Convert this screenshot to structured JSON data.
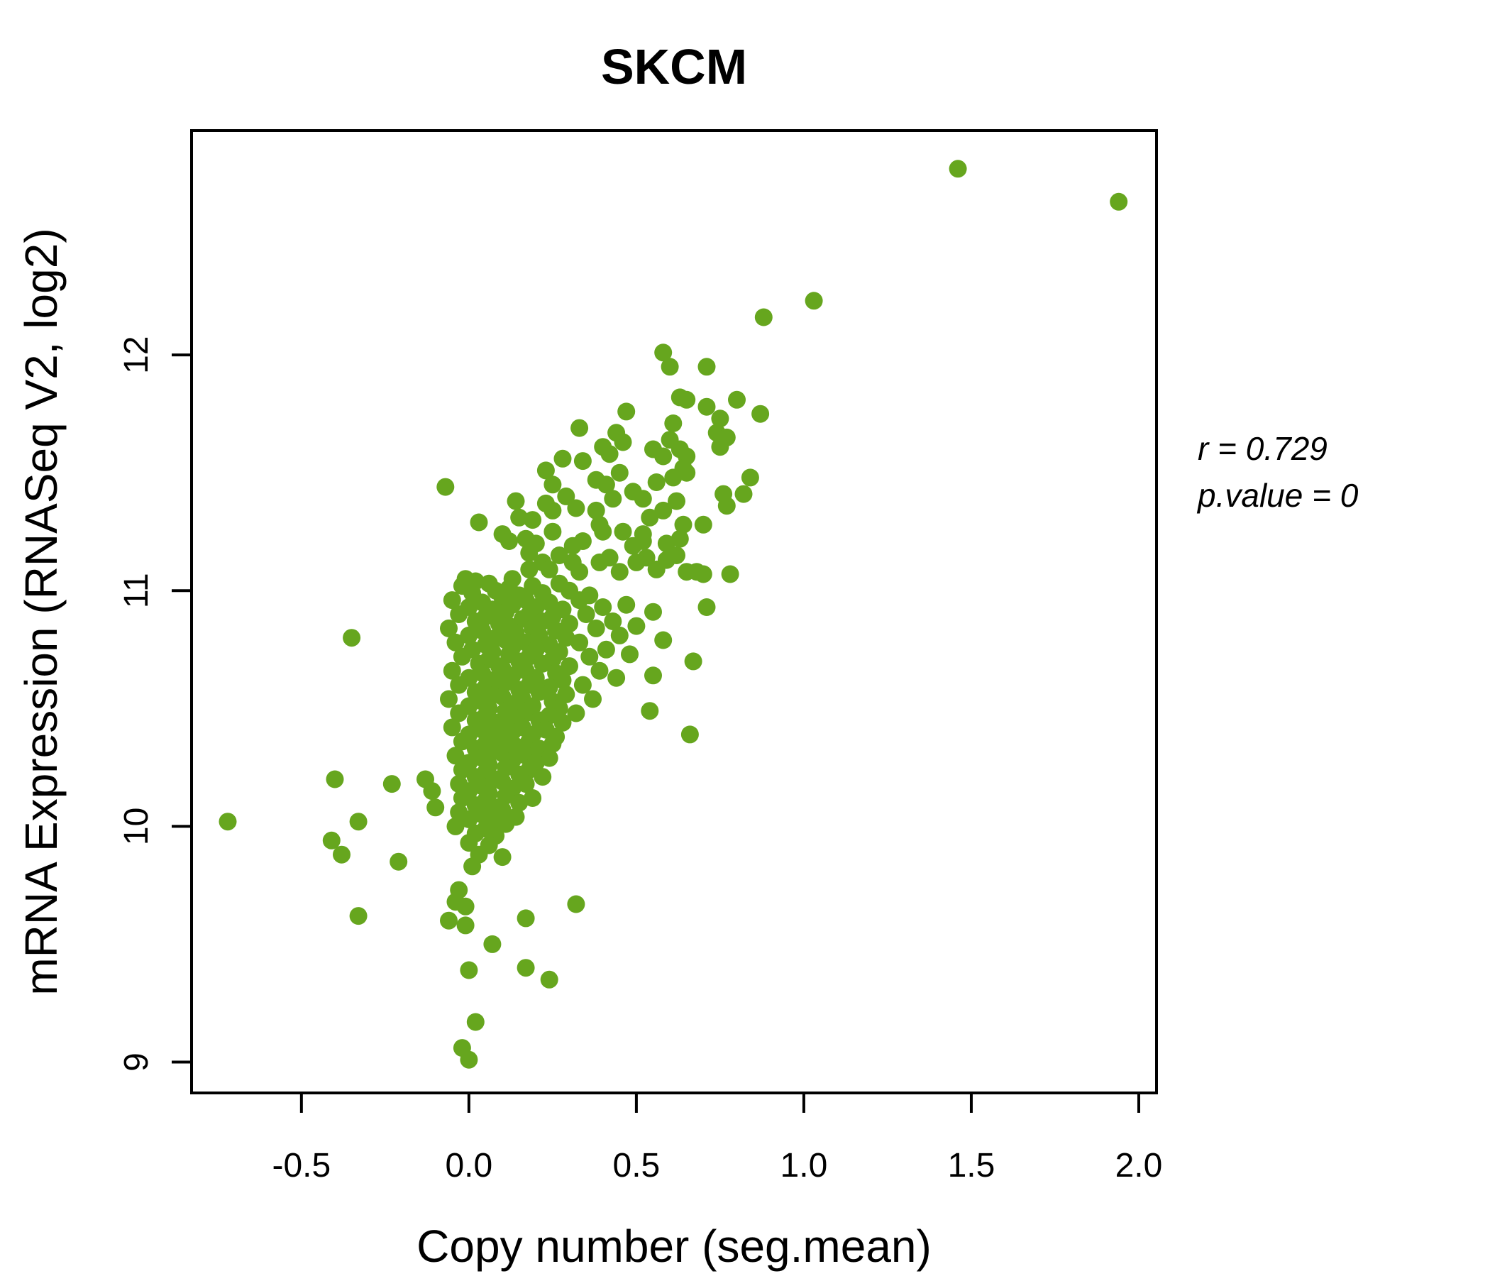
{
  "page": {
    "background": "#ffffff"
  },
  "chart_data": {
    "type": "scatter",
    "title": "SKCM",
    "title_color": "#66a61e",
    "xlabel": "Copy number (seg.mean)",
    "ylabel": "mRNA Expression (RNASeq V2, log2)",
    "xlim": [
      -0.828,
      2.053
    ],
    "ylim": [
      8.869,
      12.952
    ],
    "xticks": [
      -0.5,
      0.0,
      0.5,
      1.0,
      1.5,
      2.0
    ],
    "xtick_labels": [
      "-0.5",
      "0.0",
      "0.5",
      "1.0",
      "1.5",
      "2.0"
    ],
    "yticks": [
      9,
      10,
      11,
      12
    ],
    "ytick_labels": [
      "9",
      "10",
      "11",
      "12"
    ],
    "grid": false,
    "legend_position": "none",
    "point_color": "#66a61e",
    "point_radius_px": 12.5,
    "annotation": {
      "line1": "r = 0.729",
      "line2": "p.value = 0"
    },
    "points": [
      [
        1.46,
        12.79
      ],
      [
        1.94,
        12.65
      ],
      [
        1.03,
        12.23
      ],
      [
        0.88,
        12.16
      ],
      [
        0.58,
        12.01
      ],
      [
        0.6,
        11.95
      ],
      [
        0.71,
        11.95
      ],
      [
        0.63,
        11.82
      ],
      [
        0.65,
        11.81
      ],
      [
        0.8,
        11.81
      ],
      [
        0.71,
        11.78
      ],
      [
        0.47,
        11.76
      ],
      [
        0.87,
        11.75
      ],
      [
        0.75,
        11.73
      ],
      [
        0.33,
        11.69
      ],
      [
        0.61,
        11.71
      ],
      [
        0.44,
        11.67
      ],
      [
        0.74,
        11.67
      ],
      [
        0.77,
        11.65
      ],
      [
        0.6,
        11.64
      ],
      [
        0.46,
        11.63
      ],
      [
        0.75,
        11.61
      ],
      [
        0.4,
        11.61
      ],
      [
        0.63,
        11.6
      ],
      [
        0.42,
        11.58
      ],
      [
        0.65,
        11.57
      ],
      [
        0.28,
        11.56
      ],
      [
        0.34,
        11.55
      ],
      [
        0.55,
        11.6
      ],
      [
        0.58,
        11.57
      ],
      [
        0.23,
        11.51
      ],
      [
        0.45,
        11.5
      ],
      [
        0.65,
        11.5
      ],
      [
        0.84,
        11.48
      ],
      [
        0.38,
        11.47
      ],
      [
        0.56,
        11.46
      ],
      [
        0.61,
        11.48
      ],
      [
        0.25,
        11.45
      ],
      [
        0.41,
        11.45
      ],
      [
        -0.07,
        11.44
      ],
      [
        0.49,
        11.42
      ],
      [
        0.64,
        11.52
      ],
      [
        0.29,
        11.4
      ],
      [
        0.43,
        11.39
      ],
      [
        0.52,
        11.39
      ],
      [
        0.14,
        11.38
      ],
      [
        0.23,
        11.37
      ],
      [
        0.77,
        11.36
      ],
      [
        0.32,
        11.35
      ],
      [
        0.38,
        11.34
      ],
      [
        0.58,
        11.34
      ],
      [
        0.25,
        11.34
      ],
      [
        0.62,
        11.38
      ],
      [
        0.76,
        11.41
      ],
      [
        0.82,
        11.41
      ],
      [
        0.03,
        11.29
      ],
      [
        0.15,
        11.31
      ],
      [
        0.19,
        11.3
      ],
      [
        0.54,
        11.31
      ],
      [
        0.39,
        11.28
      ],
      [
        0.64,
        11.28
      ],
      [
        0.7,
        11.28
      ],
      [
        0.4,
        11.25
      ],
      [
        0.25,
        11.25
      ],
      [
        0.46,
        11.25
      ],
      [
        0.52,
        11.24
      ],
      [
        0.1,
        11.24
      ],
      [
        0.17,
        11.22
      ],
      [
        0.63,
        11.22
      ],
      [
        0.12,
        11.21
      ],
      [
        0.2,
        11.2
      ],
      [
        0.34,
        11.21
      ],
      [
        0.52,
        11.21
      ],
      [
        0.49,
        11.19
      ],
      [
        0.31,
        11.19
      ],
      [
        0.59,
        11.2
      ],
      [
        0.18,
        11.16
      ],
      [
        0.27,
        11.15
      ],
      [
        0.62,
        11.15
      ],
      [
        0.42,
        11.14
      ],
      [
        0.53,
        11.14
      ],
      [
        0.59,
        11.13
      ],
      [
        0.22,
        11.12
      ],
      [
        0.31,
        11.12
      ],
      [
        0.39,
        11.12
      ],
      [
        0.5,
        11.12
      ],
      [
        0.18,
        11.09
      ],
      [
        0.24,
        11.09
      ],
      [
        0.56,
        11.09
      ],
      [
        0.33,
        11.08
      ],
      [
        0.45,
        11.08
      ],
      [
        0.65,
        11.08
      ],
      [
        0.68,
        11.08
      ],
      [
        0.7,
        11.07
      ],
      [
        0.78,
        11.07
      ],
      [
        -0.01,
        11.05
      ],
      [
        0.02,
        11.04
      ],
      [
        0.13,
        11.05
      ],
      [
        0.71,
        10.93
      ],
      [
        0.67,
        10.7
      ],
      [
        0.55,
        10.64
      ],
      [
        0.54,
        10.49
      ],
      [
        0.66,
        10.39
      ],
      [
        -0.72,
        10.02
      ],
      [
        -0.41,
        9.94
      ],
      [
        -0.35,
        10.8
      ],
      [
        -0.4,
        10.2
      ],
      [
        -0.23,
        10.18
      ],
      [
        -0.13,
        10.2
      ],
      [
        -0.11,
        10.15
      ],
      [
        -0.1,
        10.08
      ],
      [
        -0.33,
        10.02
      ],
      [
        -0.38,
        9.88
      ],
      [
        -0.21,
        9.85
      ],
      [
        -0.33,
        9.62
      ],
      [
        -0.03,
        9.73
      ],
      [
        -0.04,
        9.68
      ],
      [
        -0.01,
        9.66
      ],
      [
        -0.06,
        9.6
      ],
      [
        -0.01,
        9.58
      ],
      [
        0.32,
        9.67
      ],
      [
        0.17,
        9.61
      ],
      [
        0.07,
        9.5
      ],
      [
        0.0,
        9.39
      ],
      [
        0.17,
        9.4
      ],
      [
        0.24,
        9.35
      ],
      [
        0.02,
        9.17
      ],
      [
        -0.02,
        9.06
      ],
      [
        0.0,
        9.01
      ],
      [
        -0.02,
        11.02
      ],
      [
        0.06,
        11.03
      ],
      [
        0.12,
        11.01
      ],
      [
        0.19,
        11.02
      ],
      [
        0.27,
        11.03
      ],
      [
        0.01,
        10.99
      ],
      [
        0.08,
        11.0
      ],
      [
        0.15,
        10.98
      ],
      [
        0.22,
        10.99
      ],
      [
        0.3,
        11.0
      ],
      [
        0.36,
        10.98
      ],
      [
        -0.05,
        10.96
      ],
      [
        0.04,
        10.95
      ],
      [
        0.1,
        10.97
      ],
      [
        0.17,
        10.96
      ],
      [
        0.24,
        10.95
      ],
      [
        0.33,
        10.96
      ],
      [
        0.0,
        10.93
      ],
      [
        0.07,
        10.92
      ],
      [
        0.13,
        10.94
      ],
      [
        0.2,
        10.93
      ],
      [
        0.28,
        10.92
      ],
      [
        0.4,
        10.93
      ],
      [
        0.47,
        10.94
      ],
      [
        -0.03,
        10.9
      ],
      [
        0.05,
        10.89
      ],
      [
        0.11,
        10.91
      ],
      [
        0.18,
        10.9
      ],
      [
        0.25,
        10.89
      ],
      [
        0.35,
        10.9
      ],
      [
        0.55,
        10.91
      ],
      [
        0.02,
        10.87
      ],
      [
        0.09,
        10.86
      ],
      [
        0.16,
        10.88
      ],
      [
        0.22,
        10.87
      ],
      [
        0.3,
        10.86
      ],
      [
        0.43,
        10.87
      ],
      [
        -0.06,
        10.84
      ],
      [
        0.04,
        10.83
      ],
      [
        0.12,
        10.85
      ],
      [
        0.19,
        10.84
      ],
      [
        0.26,
        10.83
      ],
      [
        0.38,
        10.84
      ],
      [
        0.5,
        10.85
      ],
      [
        0.0,
        10.81
      ],
      [
        0.08,
        10.8
      ],
      [
        0.14,
        10.82
      ],
      [
        0.21,
        10.81
      ],
      [
        0.29,
        10.8
      ],
      [
        0.45,
        10.81
      ],
      [
        -0.04,
        10.78
      ],
      [
        0.05,
        10.77
      ],
      [
        0.11,
        10.79
      ],
      [
        0.17,
        10.78
      ],
      [
        0.24,
        10.77
      ],
      [
        0.33,
        10.78
      ],
      [
        0.58,
        10.79
      ],
      [
        0.01,
        10.75
      ],
      [
        0.07,
        10.74
      ],
      [
        0.13,
        10.76
      ],
      [
        0.2,
        10.75
      ],
      [
        0.27,
        10.74
      ],
      [
        0.41,
        10.75
      ],
      [
        -0.02,
        10.72
      ],
      [
        0.06,
        10.71
      ],
      [
        0.12,
        10.73
      ],
      [
        0.18,
        10.72
      ],
      [
        0.25,
        10.71
      ],
      [
        0.36,
        10.72
      ],
      [
        0.48,
        10.73
      ],
      [
        0.03,
        10.69
      ],
      [
        0.09,
        10.68
      ],
      [
        0.15,
        10.7
      ],
      [
        0.22,
        10.69
      ],
      [
        0.3,
        10.68
      ],
      [
        -0.05,
        10.66
      ],
      [
        0.04,
        10.65
      ],
      [
        0.1,
        10.67
      ],
      [
        0.17,
        10.66
      ],
      [
        0.26,
        10.65
      ],
      [
        0.39,
        10.66
      ],
      [
        0.0,
        10.63
      ],
      [
        0.07,
        10.62
      ],
      [
        0.13,
        10.64
      ],
      [
        0.2,
        10.63
      ],
      [
        0.28,
        10.62
      ],
      [
        0.44,
        10.63
      ],
      [
        -0.03,
        10.6
      ],
      [
        0.05,
        10.59
      ],
      [
        0.11,
        10.61
      ],
      [
        0.18,
        10.6
      ],
      [
        0.24,
        10.59
      ],
      [
        0.34,
        10.6
      ],
      [
        0.02,
        10.57
      ],
      [
        0.08,
        10.56
      ],
      [
        0.15,
        10.58
      ],
      [
        0.21,
        10.57
      ],
      [
        0.29,
        10.56
      ],
      [
        -0.06,
        10.54
      ],
      [
        0.04,
        10.53
      ],
      [
        0.1,
        10.55
      ],
      [
        0.16,
        10.54
      ],
      [
        0.25,
        10.53
      ],
      [
        0.37,
        10.54
      ],
      [
        0.0,
        10.51
      ],
      [
        0.06,
        10.5
      ],
      [
        0.13,
        10.52
      ],
      [
        0.19,
        10.51
      ],
      [
        0.27,
        10.5
      ],
      [
        -0.03,
        10.48
      ],
      [
        0.05,
        10.47
      ],
      [
        0.11,
        10.49
      ],
      [
        0.17,
        10.48
      ],
      [
        0.24,
        10.47
      ],
      [
        0.32,
        10.48
      ],
      [
        0.02,
        10.45
      ],
      [
        0.08,
        10.44
      ],
      [
        0.14,
        10.46
      ],
      [
        0.21,
        10.45
      ],
      [
        0.28,
        10.44
      ],
      [
        -0.05,
        10.42
      ],
      [
        0.04,
        10.41
      ],
      [
        0.1,
        10.43
      ],
      [
        0.16,
        10.42
      ],
      [
        0.23,
        10.41
      ],
      [
        0.0,
        10.39
      ],
      [
        0.07,
        10.38
      ],
      [
        0.13,
        10.4
      ],
      [
        0.19,
        10.39
      ],
      [
        0.26,
        10.38
      ],
      [
        -0.02,
        10.36
      ],
      [
        0.05,
        10.35
      ],
      [
        0.11,
        10.37
      ],
      [
        0.18,
        10.36
      ],
      [
        0.25,
        10.35
      ],
      [
        0.02,
        10.33
      ],
      [
        0.08,
        10.32
      ],
      [
        0.14,
        10.34
      ],
      [
        0.21,
        10.33
      ],
      [
        -0.04,
        10.3
      ],
      [
        0.04,
        10.29
      ],
      [
        0.1,
        10.31
      ],
      [
        0.17,
        10.3
      ],
      [
        0.24,
        10.29
      ],
      [
        0.0,
        10.27
      ],
      [
        0.06,
        10.26
      ],
      [
        0.13,
        10.28
      ],
      [
        0.2,
        10.27
      ],
      [
        -0.02,
        10.24
      ],
      [
        0.05,
        10.23
      ],
      [
        0.11,
        10.25
      ],
      [
        0.18,
        10.24
      ],
      [
        0.02,
        10.21
      ],
      [
        0.08,
        10.2
      ],
      [
        0.15,
        10.22
      ],
      [
        0.22,
        10.21
      ],
      [
        -0.03,
        10.18
      ],
      [
        0.04,
        10.17
      ],
      [
        0.1,
        10.19
      ],
      [
        0.17,
        10.18
      ],
      [
        0.0,
        10.15
      ],
      [
        0.06,
        10.14
      ],
      [
        0.13,
        10.16
      ],
      [
        -0.02,
        10.12
      ],
      [
        0.05,
        10.11
      ],
      [
        0.11,
        10.13
      ],
      [
        0.19,
        10.12
      ],
      [
        0.02,
        10.09
      ],
      [
        0.08,
        10.08
      ],
      [
        0.15,
        10.1
      ],
      [
        -0.03,
        10.06
      ],
      [
        0.04,
        10.05
      ],
      [
        0.1,
        10.07
      ],
      [
        0.0,
        10.03
      ],
      [
        0.07,
        10.02
      ],
      [
        0.14,
        10.04
      ],
      [
        -0.04,
        10.0
      ],
      [
        0.05,
        9.99
      ],
      [
        0.11,
        10.01
      ],
      [
        0.02,
        9.97
      ],
      [
        0.08,
        9.96
      ],
      [
        0.0,
        9.93
      ],
      [
        0.06,
        9.92
      ],
      [
        0.03,
        9.88
      ],
      [
        0.1,
        9.87
      ],
      [
        0.01,
        9.83
      ]
    ]
  }
}
